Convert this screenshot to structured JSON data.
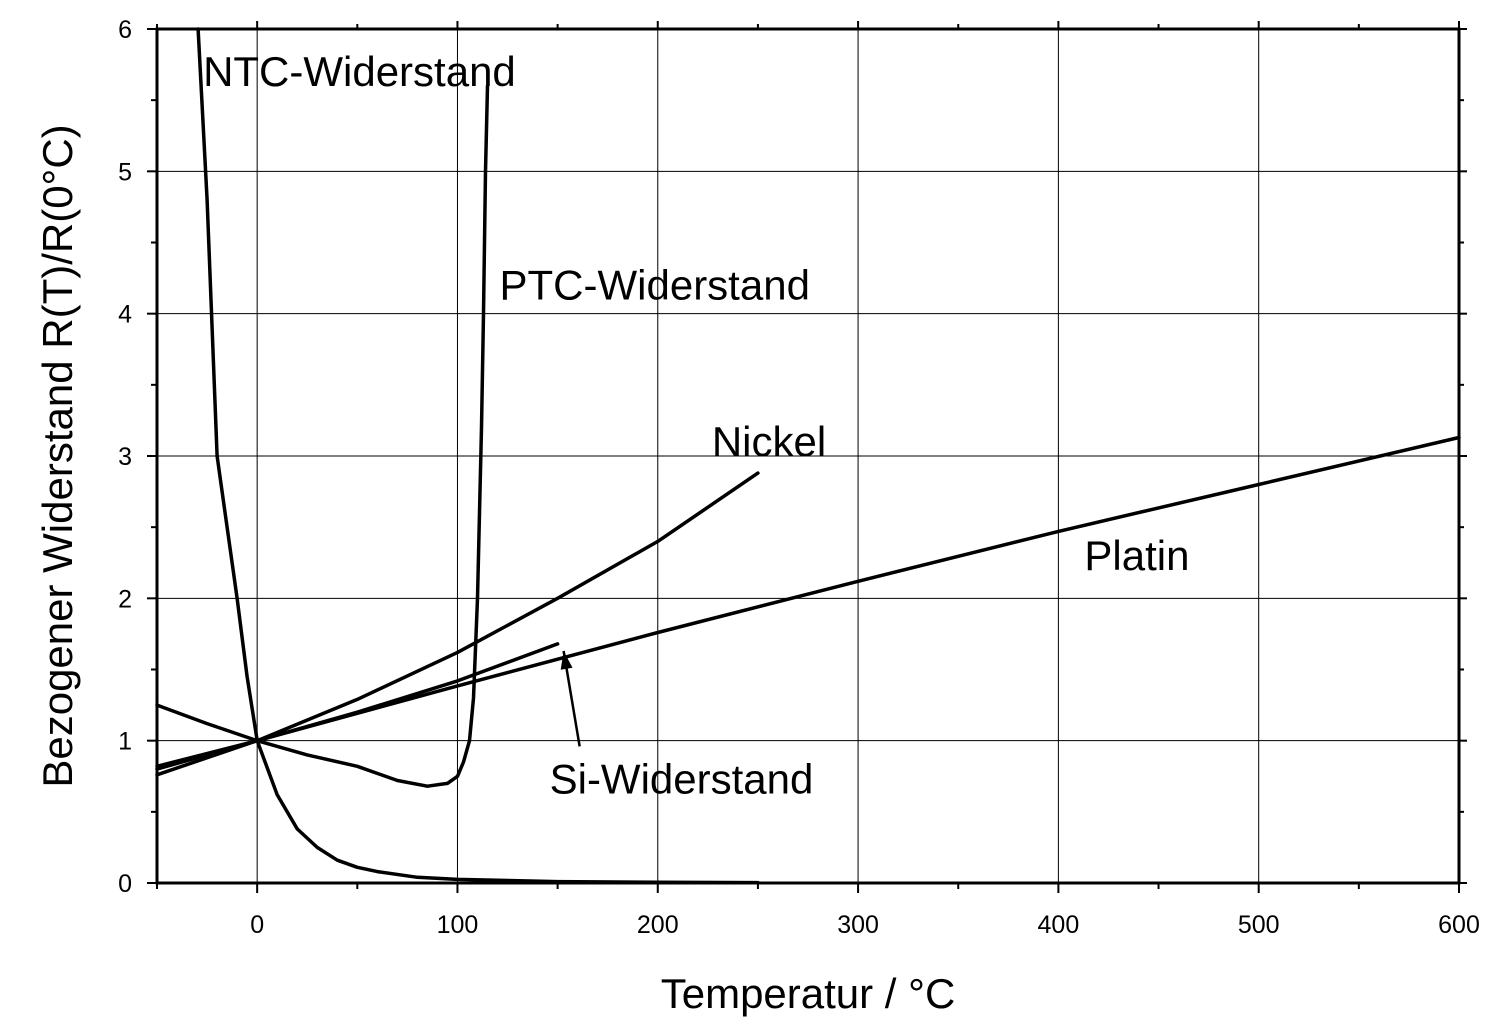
{
  "chart_data": {
    "type": "line",
    "xlabel": "Temperatur / °C",
    "ylabel": "Bezogener Widerstand R(T)/R(0°C)",
    "xlim": [
      -50,
      600
    ],
    "ylim": [
      0,
      6
    ],
    "grid": true,
    "x_ticks": [
      0,
      100,
      200,
      300,
      400,
      500,
      600
    ],
    "y_ticks": [
      0,
      1,
      2,
      3,
      4,
      5,
      6
    ],
    "x_tick_labels": [
      "0",
      "100",
      "200",
      "300",
      "400",
      "500",
      "600"
    ],
    "y_tick_labels": [
      "0",
      "1",
      "2",
      "3",
      "4",
      "5",
      "6"
    ],
    "series": [
      {
        "name": "NTC-Widerstand",
        "x": [
          -29.5,
          -25,
          -20,
          -15,
          -10,
          -5,
          0,
          10,
          20,
          30,
          40,
          50,
          60,
          80,
          100,
          150,
          200,
          250
        ],
        "y": [
          6.0,
          4.8,
          3.0,
          2.5,
          2.0,
          1.45,
          1.0,
          0.62,
          0.38,
          0.25,
          0.16,
          0.11,
          0.08,
          0.04,
          0.025,
          0.01,
          0.005,
          0.003
        ]
      },
      {
        "name": "PTC-Widerstand",
        "x": [
          -50,
          -25,
          0,
          25,
          50,
          70,
          85,
          95,
          100,
          103,
          106,
          108,
          110,
          112,
          113,
          114,
          115
        ],
        "y": [
          1.25,
          1.12,
          1.0,
          0.9,
          0.82,
          0.72,
          0.68,
          0.7,
          0.75,
          0.85,
          1.0,
          1.3,
          2.0,
          3.2,
          4.0,
          5.0,
          5.6
        ]
      },
      {
        "name": "Nickel",
        "x": [
          -50,
          0,
          50,
          100,
          150,
          200,
          250
        ],
        "y": [
          0.76,
          1.0,
          1.29,
          1.62,
          2.0,
          2.4,
          2.88
        ]
      },
      {
        "name": "Platin",
        "x": [
          -50,
          0,
          100,
          200,
          300,
          400,
          500,
          600
        ],
        "y": [
          0.8,
          1.0,
          1.385,
          1.76,
          2.12,
          2.47,
          2.8,
          3.13
        ]
      },
      {
        "name": "Si-Widerstand",
        "x": [
          -50,
          0,
          50,
          100,
          150
        ],
        "y": [
          0.82,
          1.0,
          1.2,
          1.42,
          1.68
        ]
      }
    ],
    "annotations": [
      {
        "text": "NTC-Widerstand",
        "x": -27,
        "y": 5.6
      },
      {
        "text": "PTC-Widerstand",
        "x": 121,
        "y": 4.1
      },
      {
        "text": "Nickel",
        "x": 227,
        "y": 3.0
      },
      {
        "text": "Platin",
        "x": 413,
        "y": 2.2
      },
      {
        "text": "Si-Widerstand",
        "x": 146,
        "y": 0.63
      }
    ],
    "arrow": {
      "from": [
        161,
        0.96
      ],
      "to": [
        153,
        1.63
      ]
    }
  }
}
